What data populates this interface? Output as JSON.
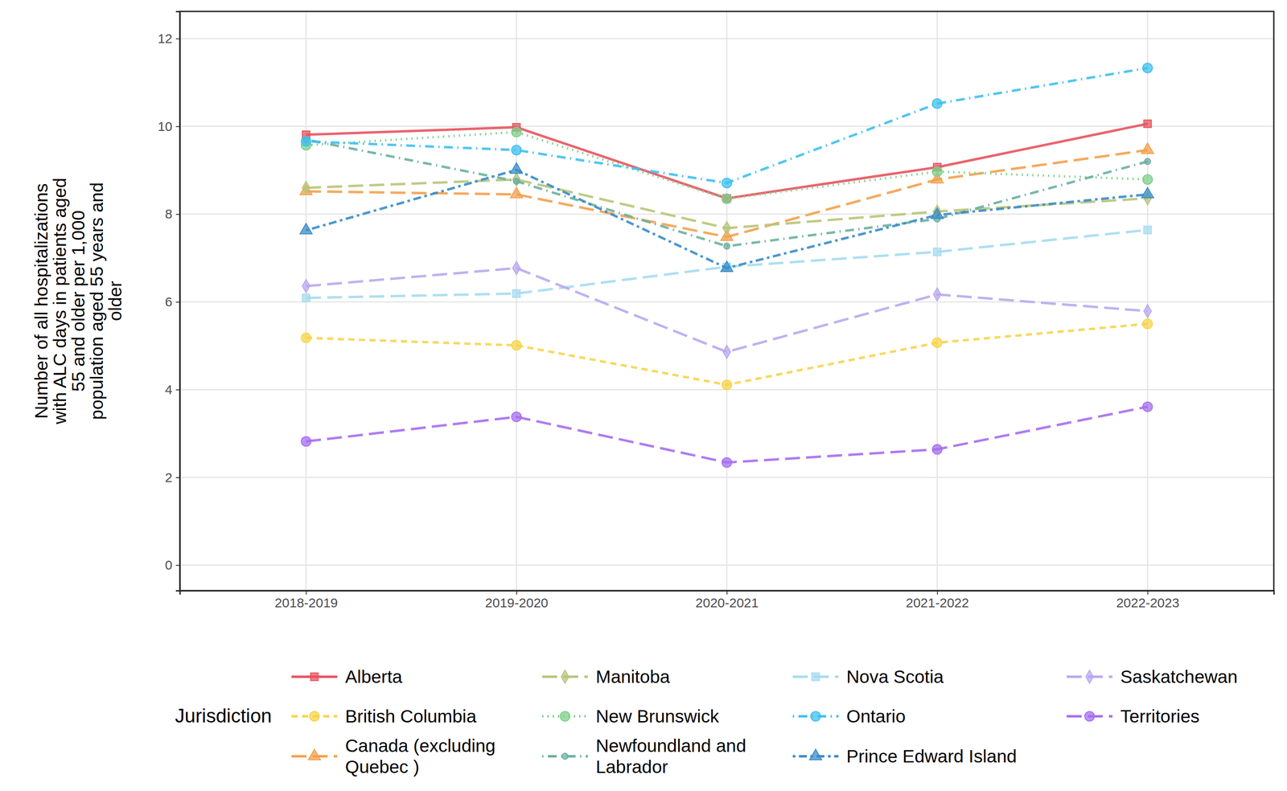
{
  "chart_data": {
    "type": "line",
    "y_label": "Number of all hospitalizations with ALC days in patients aged 55 and older per 1,000 population aged 55 years and older",
    "legend_title": "Jurisdiction",
    "legend": "bottom",
    "grid": true,
    "categories": [
      "2018-2019",
      "2019-2020",
      "2020-2021",
      "2021-2022",
      "2022-2023"
    ],
    "ylim": [
      -0.58,
      12.62
    ],
    "yticks": [
      0,
      2,
      4,
      6,
      8,
      10,
      12
    ],
    "series": [
      {
        "name": "Alberta",
        "color": "#e8535e",
        "marker": "square",
        "line_style": "solid",
        "values": [
          9.81,
          9.98,
          8.36,
          9.07,
          10.06
        ]
      },
      {
        "name": "British Columbia",
        "color": "#f7d44a",
        "marker": "circle",
        "line_style": "dashed",
        "values": [
          5.18,
          5.01,
          4.11,
          5.07,
          5.5
        ]
      },
      {
        "name": "Canada (excluding Quebec )",
        "color": "#f4a04c",
        "marker": "triangle",
        "line_style": "longdash",
        "values": [
          8.52,
          8.45,
          7.48,
          8.79,
          9.46
        ]
      },
      {
        "name": "Manitoba",
        "color": "#b8c57a",
        "marker": "diamond",
        "line_style": "longdash",
        "values": [
          8.6,
          8.79,
          7.68,
          8.06,
          8.36
        ]
      },
      {
        "name": "New Brunswick",
        "color": "#7ccf8a",
        "marker": "circle",
        "line_style": "dotted",
        "values": [
          9.57,
          9.87,
          8.35,
          8.97,
          8.79
        ]
      },
      {
        "name": "Newfoundland and Labrador",
        "color": "#6ab0a0",
        "marker": "point",
        "line_style": "dashdot",
        "values": [
          9.7,
          8.75,
          7.27,
          7.89,
          9.2
        ]
      },
      {
        "name": "Nova Scotia",
        "color": "#a5dcf0",
        "marker": "square",
        "line_style": "longdash",
        "values": [
          6.09,
          6.19,
          6.8,
          7.14,
          7.64
        ]
      },
      {
        "name": "Ontario",
        "color": "#3ec0ef",
        "marker": "circle",
        "line_style": "dashdot",
        "values": [
          9.66,
          9.46,
          8.71,
          10.52,
          11.33
        ]
      },
      {
        "name": "Prince Edward Island",
        "color": "#3a8cc8",
        "marker": "triangle",
        "line_style": "twodash",
        "values": [
          7.63,
          9.01,
          6.77,
          7.98,
          8.45
        ]
      },
      {
        "name": "Saskatchewan",
        "color": "#b9a8f0",
        "marker": "diamond",
        "line_style": "longdash",
        "values": [
          6.36,
          6.77,
          4.86,
          6.17,
          5.79
        ]
      },
      {
        "name": "Territories",
        "color": "#a66ef0",
        "marker": "circle",
        "line_style": "longdash",
        "values": [
          2.82,
          3.38,
          2.34,
          2.64,
          3.61
        ]
      }
    ]
  }
}
